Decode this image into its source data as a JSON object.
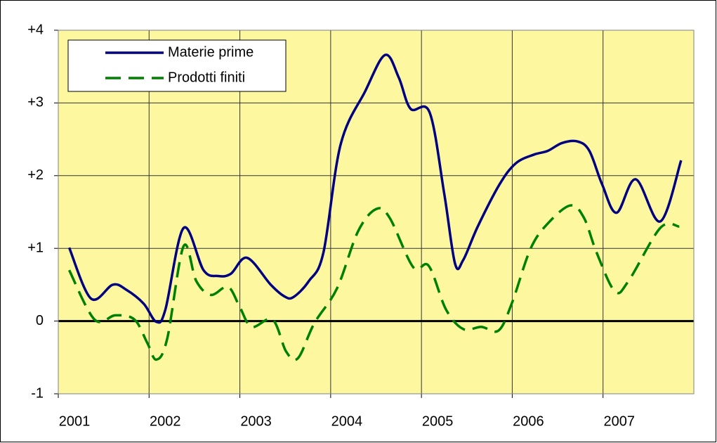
{
  "chart_data": {
    "type": "line",
    "xlim": [
      2001,
      2008
    ],
    "xticks": [
      2001,
      2002,
      2003,
      2004,
      2005,
      2006,
      2007
    ],
    "ylim": [
      -1,
      4
    ],
    "yticks": [
      -1,
      0,
      {
        "value": 1,
        "label": "+1"
      },
      {
        "value": 2,
        "label": "+2"
      },
      {
        "value": 3,
        "label": "+3"
      },
      {
        "value": 4,
        "label": "+4"
      }
    ],
    "grid": true,
    "legend": "upper left",
    "background": "#fdf7a0",
    "series": [
      {
        "name": "Materie prime",
        "color": "#000080",
        "dash": "solid",
        "x": [
          2001.12,
          2001.36,
          2001.6,
          2001.75,
          2001.94,
          2002.08,
          2002.18,
          2002.38,
          2002.6,
          2002.76,
          2002.9,
          2003.08,
          2003.34,
          2003.49,
          2003.59,
          2003.76,
          2003.92,
          2004.11,
          2004.38,
          2004.6,
          2004.75,
          2004.88,
          2005.09,
          2005.25,
          2005.37,
          2005.46,
          2005.62,
          2005.86,
          2006.04,
          2006.24,
          2006.39,
          2006.55,
          2006.72,
          2006.85,
          2006.99,
          2007.15,
          2007.36,
          2007.63,
          2007.86
        ],
        "values": [
          1.01,
          0.31,
          0.5,
          0.43,
          0.24,
          -0.01,
          0.16,
          1.28,
          0.7,
          0.62,
          0.65,
          0.87,
          0.5,
          0.34,
          0.33,
          0.55,
          0.94,
          2.43,
          3.16,
          3.66,
          3.35,
          2.92,
          2.87,
          1.76,
          0.79,
          0.84,
          1.3,
          1.88,
          2.17,
          2.29,
          2.34,
          2.45,
          2.47,
          2.34,
          1.88,
          1.49,
          1.95,
          1.37,
          2.21
        ]
      },
      {
        "name": "Prodotti finiti",
        "color": "#008000",
        "dash": "dashed",
        "x": [
          2001.12,
          2001.4,
          2001.63,
          2001.84,
          2001.98,
          2002.08,
          2002.2,
          2002.38,
          2002.52,
          2002.68,
          2002.87,
          2003.0,
          2003.13,
          2003.36,
          2003.51,
          2003.64,
          2003.82,
          2004.07,
          2004.3,
          2004.5,
          2004.65,
          2004.91,
          2005.08,
          2005.27,
          2005.46,
          2005.66,
          2005.85,
          2006.0,
          2006.2,
          2006.39,
          2006.64,
          2006.79,
          2006.93,
          2007.13,
          2007.28,
          2007.63,
          2007.84
        ],
        "values": [
          0.7,
          0.02,
          0.08,
          0.02,
          -0.3,
          -0.53,
          -0.24,
          1.03,
          0.55,
          0.36,
          0.47,
          0.19,
          -0.08,
          0.02,
          -0.42,
          -0.51,
          -0.03,
          0.45,
          1.23,
          1.54,
          1.42,
          0.74,
          0.76,
          0.16,
          -0.11,
          -0.08,
          -0.13,
          0.26,
          0.99,
          1.34,
          1.59,
          1.42,
          0.94,
          0.41,
          0.55,
          1.28,
          1.3
        ]
      }
    ]
  }
}
